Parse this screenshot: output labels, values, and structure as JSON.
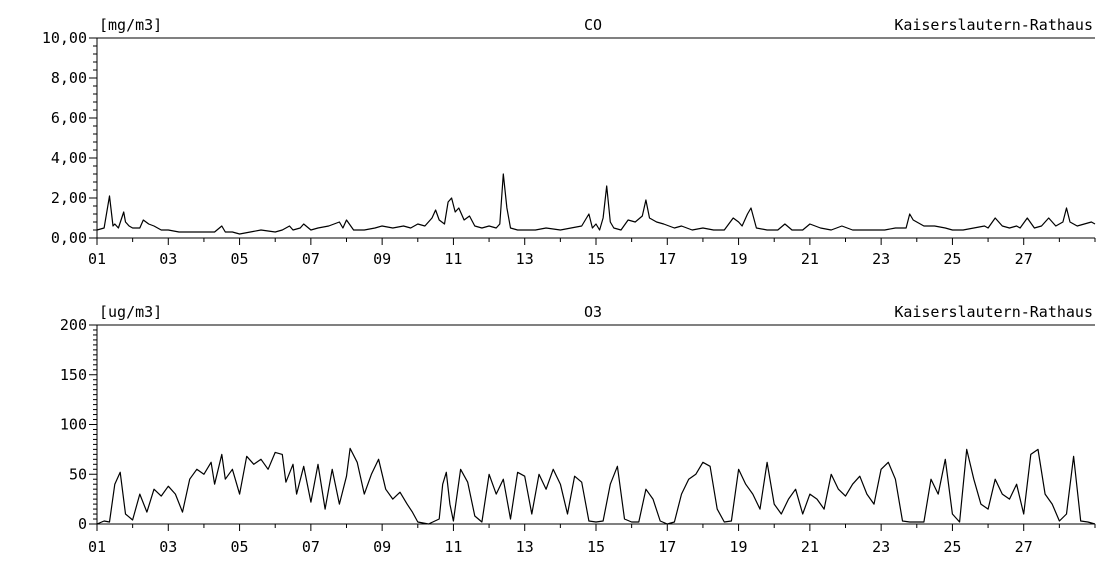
{
  "chart_data": [
    {
      "type": "line",
      "unit_label": "[mg/m3]",
      "title": "CO",
      "station": "Kaiserslautern-Rathaus",
      "xlabel": "",
      "ylabel": "",
      "xlim": [
        1,
        29
      ],
      "ylim": [
        0,
        10
      ],
      "y_ticks": [
        "0,00",
        "2,00",
        "4,00",
        "6,00",
        "8,00",
        "10,00"
      ],
      "y_tick_values": [
        0,
        2,
        4,
        6,
        8,
        10
      ],
      "x_ticks": [
        "01",
        "03",
        "05",
        "07",
        "09",
        "11",
        "13",
        "15",
        "17",
        "19",
        "21",
        "23",
        "25",
        "27"
      ],
      "x_tick_values": [
        1,
        3,
        5,
        7,
        9,
        11,
        13,
        15,
        17,
        19,
        21,
        23,
        25,
        27
      ],
      "line_color": "#000000",
      "grid": false,
      "series": [
        {
          "x": [
            1.0,
            1.2,
            1.35,
            1.45,
            1.5,
            1.6,
            1.75,
            1.8,
            1.9,
            2.0,
            2.2,
            2.3,
            2.45,
            2.6,
            2.8,
            3.0,
            3.3,
            3.6,
            4.0,
            4.3,
            4.5,
            4.6,
            4.8,
            5.0,
            5.3,
            5.6,
            6.0,
            6.2,
            6.4,
            6.5,
            6.7,
            6.8,
            7.0,
            7.2,
            7.5,
            7.8,
            7.9,
            8.0,
            8.2,
            8.5,
            8.8,
            9.0,
            9.3,
            9.6,
            9.8,
            10.0,
            10.2,
            10.4,
            10.5,
            10.6,
            10.75,
            10.85,
            10.95,
            11.05,
            11.15,
            11.3,
            11.45,
            11.6,
            11.8,
            12.0,
            12.2,
            12.3,
            12.4,
            12.5,
            12.6,
            12.8,
            13.0,
            13.3,
            13.6,
            14.0,
            14.3,
            14.6,
            14.8,
            14.9,
            15.0,
            15.1,
            15.2,
            15.3,
            15.4,
            15.5,
            15.7,
            15.9,
            16.1,
            16.3,
            16.4,
            16.5,
            16.7,
            16.9,
            17.2,
            17.4,
            17.7,
            18.0,
            18.3,
            18.6,
            18.85,
            19.0,
            19.1,
            19.25,
            19.35,
            19.5,
            19.8,
            20.1,
            20.3,
            20.5,
            20.8,
            21.0,
            21.3,
            21.6,
            21.9,
            22.2,
            22.5,
            22.8,
            23.1,
            23.4,
            23.7,
            23.8,
            23.9,
            24.2,
            24.5,
            24.8,
            25.0,
            25.3,
            25.6,
            25.9,
            26.0,
            26.2,
            26.4,
            26.6,
            26.8,
            26.9,
            27.1,
            27.3,
            27.5,
            27.7,
            27.9,
            28.1,
            28.2,
            28.3,
            28.5,
            28.7,
            28.9,
            29.0
          ],
          "values": [
            0.4,
            0.5,
            2.1,
            0.6,
            0.7,
            0.5,
            1.3,
            0.8,
            0.6,
            0.5,
            0.5,
            0.9,
            0.7,
            0.6,
            0.4,
            0.4,
            0.3,
            0.3,
            0.3,
            0.3,
            0.6,
            0.3,
            0.3,
            0.2,
            0.3,
            0.4,
            0.3,
            0.4,
            0.6,
            0.4,
            0.5,
            0.7,
            0.4,
            0.5,
            0.6,
            0.8,
            0.5,
            0.9,
            0.4,
            0.4,
            0.5,
            0.6,
            0.5,
            0.6,
            0.5,
            0.7,
            0.6,
            1.0,
            1.4,
            0.9,
            0.7,
            1.8,
            2.0,
            1.3,
            1.5,
            0.9,
            1.1,
            0.6,
            0.5,
            0.6,
            0.5,
            0.7,
            3.2,
            1.5,
            0.5,
            0.4,
            0.4,
            0.4,
            0.5,
            0.4,
            0.5,
            0.6,
            1.2,
            0.5,
            0.7,
            0.4,
            1.0,
            2.6,
            0.8,
            0.5,
            0.4,
            0.9,
            0.8,
            1.1,
            1.9,
            1.0,
            0.8,
            0.7,
            0.5,
            0.6,
            0.4,
            0.5,
            0.4,
            0.4,
            1.0,
            0.8,
            0.6,
            1.2,
            1.5,
            0.5,
            0.4,
            0.4,
            0.7,
            0.4,
            0.4,
            0.7,
            0.5,
            0.4,
            0.6,
            0.4,
            0.4,
            0.4,
            0.4,
            0.5,
            0.5,
            1.2,
            0.9,
            0.6,
            0.6,
            0.5,
            0.4,
            0.4,
            0.5,
            0.6,
            0.5,
            1.0,
            0.6,
            0.5,
            0.6,
            0.5,
            1.0,
            0.5,
            0.6,
            1.0,
            0.6,
            0.8,
            1.5,
            0.8,
            0.6,
            0.7,
            0.8,
            0.7
          ]
        }
      ]
    },
    {
      "type": "line",
      "unit_label": "[ug/m3]",
      "title": "O3",
      "station": "Kaiserslautern-Rathaus",
      "xlabel": "",
      "ylabel": "",
      "xlim": [
        1,
        29
      ],
      "ylim": [
        0,
        200
      ],
      "y_ticks": [
        "0",
        "50",
        "100",
        "150",
        "200"
      ],
      "y_tick_values": [
        0,
        50,
        100,
        150,
        200
      ],
      "x_ticks": [
        "01",
        "03",
        "05",
        "07",
        "09",
        "11",
        "13",
        "15",
        "17",
        "19",
        "21",
        "23",
        "25",
        "27"
      ],
      "x_tick_values": [
        1,
        3,
        5,
        7,
        9,
        11,
        13,
        15,
        17,
        19,
        21,
        23,
        25,
        27
      ],
      "line_color": "#000000",
      "grid": false,
      "series": [
        {
          "x": [
            1.0,
            1.2,
            1.35,
            1.5,
            1.65,
            1.8,
            2.0,
            2.2,
            2.4,
            2.6,
            2.8,
            3.0,
            3.2,
            3.4,
            3.6,
            3.8,
            4.0,
            4.2,
            4.3,
            4.5,
            4.6,
            4.8,
            5.0,
            5.2,
            5.4,
            5.6,
            5.8,
            6.0,
            6.2,
            6.3,
            6.5,
            6.6,
            6.8,
            7.0,
            7.2,
            7.4,
            7.6,
            7.8,
            8.0,
            8.1,
            8.3,
            8.5,
            8.7,
            8.9,
            9.1,
            9.3,
            9.5,
            9.7,
            9.85,
            10.0,
            10.3,
            10.6,
            10.7,
            10.8,
            10.9,
            11.0,
            11.2,
            11.4,
            11.6,
            11.8,
            12.0,
            12.2,
            12.4,
            12.6,
            12.8,
            13.0,
            13.2,
            13.4,
            13.6,
            13.8,
            14.0,
            14.2,
            14.4,
            14.6,
            14.8,
            15.0,
            15.2,
            15.4,
            15.6,
            15.8,
            16.0,
            16.2,
            16.4,
            16.6,
            16.8,
            17.0,
            17.2,
            17.4,
            17.6,
            17.8,
            18.0,
            18.2,
            18.4,
            18.6,
            18.8,
            19.0,
            19.2,
            19.4,
            19.6,
            19.8,
            20.0,
            20.2,
            20.4,
            20.6,
            20.8,
            21.0,
            21.2,
            21.4,
            21.6,
            21.8,
            22.0,
            22.2,
            22.4,
            22.6,
            22.8,
            23.0,
            23.2,
            23.4,
            23.6,
            23.8,
            24.0,
            24.2,
            24.4,
            24.6,
            24.8,
            25.0,
            25.2,
            25.4,
            25.6,
            25.8,
            26.0,
            26.2,
            26.4,
            26.6,
            26.8,
            27.0,
            27.2,
            27.4,
            27.6,
            27.8,
            28.0,
            28.2,
            28.4,
            28.6,
            28.8,
            29.0
          ],
          "values": [
            0,
            3,
            2,
            40,
            52,
            10,
            4,
            30,
            12,
            35,
            28,
            38,
            30,
            12,
            45,
            55,
            50,
            62,
            40,
            70,
            45,
            55,
            30,
            68,
            60,
            65,
            55,
            72,
            70,
            42,
            60,
            30,
            58,
            22,
            60,
            15,
            55,
            20,
            48,
            76,
            62,
            30,
            50,
            65,
            35,
            25,
            32,
            20,
            12,
            2,
            0,
            5,
            40,
            52,
            20,
            3,
            55,
            42,
            8,
            2,
            50,
            30,
            45,
            5,
            52,
            48,
            10,
            50,
            35,
            55,
            40,
            10,
            48,
            42,
            3,
            2,
            3,
            40,
            58,
            5,
            2,
            2,
            35,
            25,
            3,
            0,
            2,
            30,
            45,
            50,
            62,
            58,
            15,
            2,
            3,
            55,
            40,
            30,
            15,
            62,
            20,
            10,
            25,
            35,
            10,
            30,
            25,
            15,
            50,
            35,
            28,
            40,
            48,
            30,
            20,
            55,
            62,
            45,
            3,
            2,
            2,
            2,
            45,
            30,
            65,
            10,
            2,
            75,
            45,
            20,
            15,
            45,
            30,
            25,
            40,
            10,
            70,
            75,
            30,
            20,
            3,
            10,
            68,
            3,
            2,
            0
          ]
        }
      ]
    }
  ]
}
